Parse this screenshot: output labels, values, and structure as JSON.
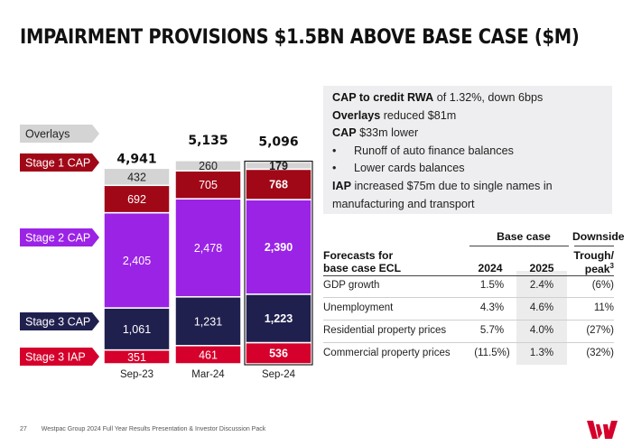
{
  "title": "IMPAIRMENT PROVISIONS $1.5BN ABOVE BASE CASE ($M)",
  "chart_data": {
    "type": "bar",
    "stacked": true,
    "categories": [
      "Sep-23",
      "Mar-24",
      "Sep-24"
    ],
    "totals": [
      "4,941",
      "5,135",
      "5,096"
    ],
    "series": [
      {
        "name": "Stage 3 IAP",
        "values": [
          351,
          461,
          536
        ],
        "labels": [
          "351",
          "461",
          "536"
        ],
        "color": "#d5002b"
      },
      {
        "name": "Stage 3 CAP",
        "values": [
          1061,
          1231,
          1223
        ],
        "labels": [
          "1,061",
          "1,231",
          "1,223"
        ],
        "color": "#20204f"
      },
      {
        "name": "Stage 2 CAP",
        "values": [
          2405,
          2478,
          2390
        ],
        "labels": [
          "2,405",
          "2,478",
          "2,390"
        ],
        "color": "#9b23e6"
      },
      {
        "name": "Stage 1 CAP",
        "values": [
          692,
          705,
          768
        ],
        "labels": [
          "692",
          "705",
          "768"
        ],
        "color": "#a00818"
      },
      {
        "name": "Overlays",
        "values": [
          432,
          260,
          179
        ],
        "labels": [
          "432",
          "260",
          "179"
        ],
        "color": "#d4d4d4"
      }
    ],
    "highlight_category": "Sep-24",
    "legend": [
      "Overlays",
      "Stage 1 CAP",
      "Stage 2 CAP",
      "Stage 3 CAP",
      "Stage 3 IAP"
    ],
    "legend_placement": "left"
  },
  "info": {
    "line1_bold": "CAP to credit RWA",
    "line1_rest": " of 1.32%, down 6bps",
    "line2_bold": "Overlays",
    "line2_rest": " reduced $81m",
    "line3_bold": "CAP",
    "line3_rest": " $33m lower",
    "bullet1": "Runoff of auto finance balances",
    "bullet2": "Lower cards balances",
    "line4_bold": "IAP",
    "line4_rest": " increased $75m due to single names in",
    "line4_cont": "manufacturing and transport"
  },
  "forecast": {
    "group_base": "Base case",
    "group_down": "Downside",
    "header_label_1": "Forecasts for",
    "header_label_2": "base case ECL",
    "col_2024": "2024",
    "col_2025": "2025",
    "col_trough_1": "Trough/",
    "col_trough_2": "peak",
    "col_trough_sup": "3",
    "rows": [
      {
        "label": "GDP growth",
        "v2024": "1.5%",
        "v2025": "2.4%",
        "trough": "(6%)"
      },
      {
        "label": "Unemployment",
        "v2024": "4.3%",
        "v2025": "4.6%",
        "trough": "11%"
      },
      {
        "label": "Residential property prices",
        "v2024": "5.7%",
        "v2025": "4.0%",
        "trough": "(27%)"
      },
      {
        "label": "Commercial property prices",
        "v2024": "(11.5%)",
        "v2025": "1.3%",
        "trough": "(32%)"
      }
    ]
  },
  "footer": {
    "page": "27",
    "text": "Westpac Group 2024 Full Year Results Presentation & Investor Discussion Pack"
  },
  "colors": {
    "brand_red": "#d5002b",
    "info_bg": "#eeeef0"
  }
}
